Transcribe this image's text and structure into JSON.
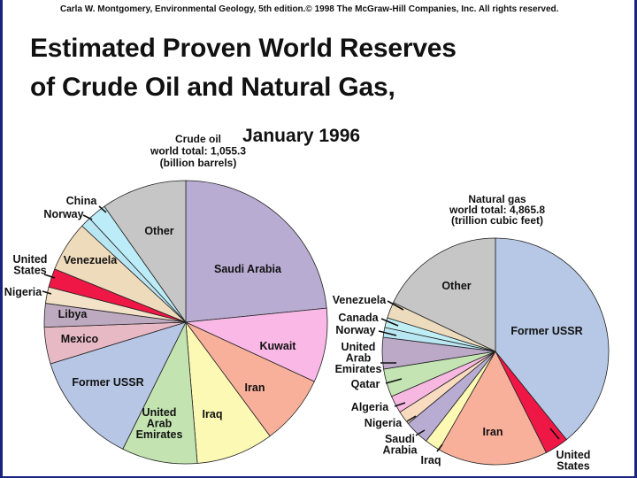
{
  "header": {
    "copyright": "Carla W. Montgomery, Environmental Geology, 5th edition.© 1998 The McGraw-Hill Companies, Inc. All rights reserved.",
    "title_line1": "Estimated Proven World Reserves",
    "title_line2": "of Crude Oil and Natural Gas,",
    "subtitle": "January 1996"
  },
  "chart_data": [
    {
      "type": "pie",
      "header": [
        "Crude oil",
        "world total: 1,055.3",
        "(billion barrels)"
      ],
      "slices": [
        {
          "label": "Saudi Arabia",
          "value": 25.2,
          "color": "#b9acd3"
        },
        {
          "label": "Kuwait",
          "value": 9.1,
          "color": "#f9b8e6"
        },
        {
          "label": "Iran",
          "value": 8.6,
          "color": "#f9b09b"
        },
        {
          "label": "Iraq",
          "value": 9.5,
          "color": "#fbf9b3"
        },
        {
          "label": "United Arab Emirates",
          "value": 9.3,
          "color": "#c3e4b1"
        },
        {
          "label": "Former USSR",
          "value": 13.9,
          "color": "#b7c6e5"
        },
        {
          "label": "Mexico",
          "value": 4.5,
          "color": "#e7b9c5"
        },
        {
          "label": "Libya",
          "value": 2.9,
          "color": "#bdaac0"
        },
        {
          "label": "Nigeria",
          "value": 2.0,
          "color": "#f4e2c8"
        },
        {
          "label": "United States",
          "value": 2.3,
          "color": "#ee1746"
        },
        {
          "label": "Venezuela",
          "value": 6.2,
          "color": "#eedbbb"
        },
        {
          "label": "Norway",
          "value": 1.3,
          "color": "#b8e6f2"
        },
        {
          "label": "China",
          "value": 2.3,
          "color": "#bcecf7"
        },
        {
          "label": "Other",
          "value": 10.5,
          "color": "#c6c6c6"
        }
      ]
    },
    {
      "type": "pie",
      "header": [
        "Natural gas",
        "world total: 4,865.8",
        "(trillion cubic feet)"
      ],
      "slices": [
        {
          "label": "Former USSR",
          "value": 39.2,
          "color": "#b6c8e6"
        },
        {
          "label": "United States",
          "value": 3.4,
          "color": "#ee1746"
        },
        {
          "label": "Iran",
          "value": 15.7,
          "color": "#f9b09b"
        },
        {
          "label": "Iraq",
          "value": 2.2,
          "color": "#fbf9b3"
        },
        {
          "label": "Saudi Arabia",
          "value": 3.5,
          "color": "#b9acd3"
        },
        {
          "label": "Nigeria",
          "value": 2.0,
          "color": "#f9dcc0"
        },
        {
          "label": "Algeria",
          "value": 2.5,
          "color": "#f6b8e0"
        },
        {
          "label": "Qatar",
          "value": 4.0,
          "color": "#c4e4b4"
        },
        {
          "label": "United Arab Emirates",
          "value": 4.5,
          "color": "#bca8c7"
        },
        {
          "label": "Norway",
          "value": 1.4,
          "color": "#b8e6f2"
        },
        {
          "label": "Canada",
          "value": 1.4,
          "color": "#bfeef5"
        },
        {
          "label": "Venezuela",
          "value": 2.3,
          "color": "#eddbbe"
        },
        {
          "label": "Other",
          "value": 17.9,
          "color": "#c6c6c6"
        }
      ]
    }
  ]
}
